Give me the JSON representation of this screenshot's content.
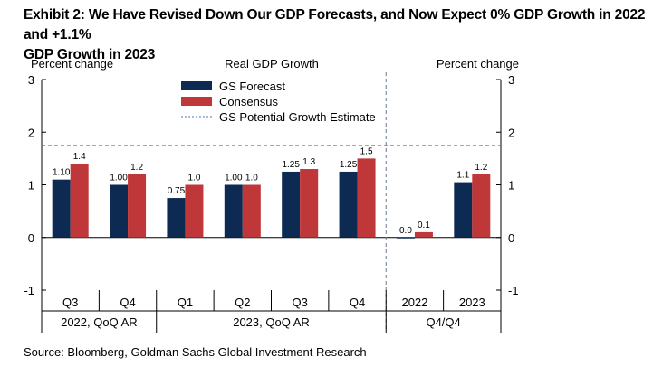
{
  "title_line1": "Exhibit 2: We Have Revised Down Our GDP Forecasts, and Now Expect 0% GDP Growth in 2022 and +1.1%",
  "title_line2": "GDP Growth in 2023",
  "source": "Source: Bloomberg, Goldman Sachs Global Investment Research",
  "chart_data": {
    "type": "bar",
    "title": "Real GDP Growth",
    "ylabel_left": "Percent change",
    "ylabel_right": "Percent change",
    "ylim": [
      -1,
      3
    ],
    "yticks": [
      "3",
      "2",
      "1",
      "0",
      "-1"
    ],
    "yticks_right": [
      "3",
      "2",
      "1",
      "0",
      "-1"
    ],
    "categories": [
      "Q3",
      "Q4",
      "Q1",
      "Q2",
      "Q3",
      "Q4",
      "2022",
      "2023"
    ],
    "groups": [
      {
        "label": "2022, QoQ AR",
        "span": [
          0,
          1
        ]
      },
      {
        "label": "2023, QoQ AR",
        "span": [
          2,
          5
        ]
      },
      {
        "label": "Q4/Q4",
        "span": [
          6,
          7
        ]
      }
    ],
    "series": [
      {
        "name": "GS Forecast",
        "color": "#0c2a52",
        "values": [
          1.1,
          1.0,
          0.75,
          1.0,
          1.25,
          1.25,
          0.0,
          1.05
        ],
        "labels": [
          "1.10",
          "1.00",
          "0.75",
          "1.00",
          "1.25",
          "1.25",
          "0.0",
          "1.1"
        ]
      },
      {
        "name": "Consensus",
        "color": "#c0373a",
        "values": [
          1.4,
          1.2,
          1.0,
          1.0,
          1.3,
          1.5,
          0.1,
          1.2
        ],
        "labels": [
          "1.4",
          "1.2",
          "1.0",
          "1.0",
          "1.3",
          "1.5",
          "0.1",
          "1.2"
        ]
      }
    ],
    "reference_line": {
      "name": "GS Potential Growth Estimate",
      "value": 1.75,
      "color": "#4a78b8",
      "style": "dashed"
    },
    "divider_between": [
      5,
      6
    ],
    "legend_position": "top-center",
    "grid": false
  }
}
